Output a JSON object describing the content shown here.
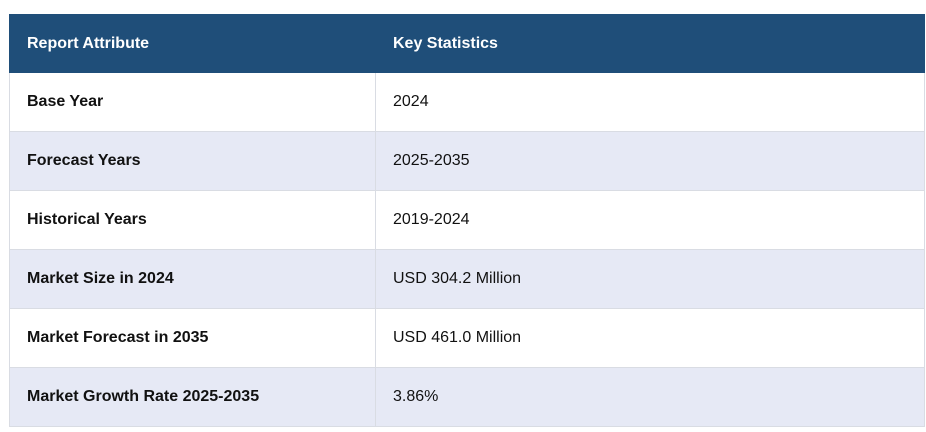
{
  "table": {
    "headers": [
      "Report Attribute",
      "Key Statistics"
    ],
    "rows": [
      [
        "Base Year",
        "2024"
      ],
      [
        "Forecast Years",
        "2025-2035"
      ],
      [
        "Historical Years",
        "2019-2024"
      ],
      [
        "Market Size in 2024",
        "USD 304.2 Million"
      ],
      [
        "Market Forecast in 2035",
        "USD 461.0 Million"
      ],
      [
        "Market Growth Rate 2025-2035",
        "3.86%"
      ]
    ]
  },
  "colors": {
    "header_bg": "#1f4e79",
    "header_text": "#ffffff",
    "row_alt_bg": "#e6e9f5",
    "border": "#d9dce3"
  }
}
